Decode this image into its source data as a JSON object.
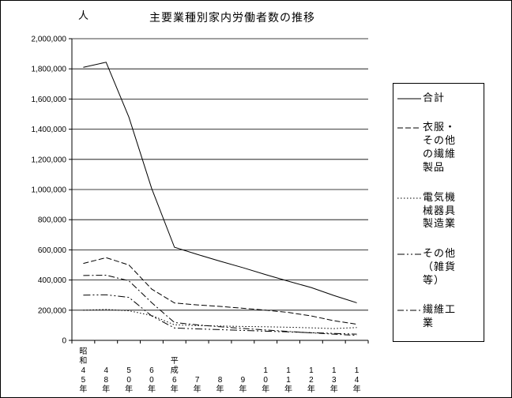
{
  "chart_data": {
    "type": "line",
    "title": "主要業種別家内労働者数の推移",
    "unit_label": "人",
    "grid": "horizontal",
    "legend_position": "right",
    "line_color": "#000000",
    "ylim": [
      0,
      2000000
    ],
    "y_ticks": [
      {
        "value": 0,
        "label": "0"
      },
      {
        "value": 200000,
        "label": "200,000"
      },
      {
        "value": 400000,
        "label": "400,000"
      },
      {
        "value": 600000,
        "label": "600,000"
      },
      {
        "value": 800000,
        "label": "800,000"
      },
      {
        "value": 1000000,
        "label": "1,000,000"
      },
      {
        "value": 1200000,
        "label": "1,200,000"
      },
      {
        "value": 1400000,
        "label": "1,400,000"
      },
      {
        "value": 1600000,
        "label": "1,600,000"
      },
      {
        "value": 1800000,
        "label": "1,800,000"
      },
      {
        "value": 2000000,
        "label": "2,000,000"
      }
    ],
    "categories": [
      "昭和45年",
      "48年",
      "50年",
      "60年",
      "平成6年",
      "7年",
      "8年",
      "9年",
      "10年",
      "11年",
      "12年",
      "13年",
      "14年"
    ],
    "series": [
      {
        "name": "合計",
        "legend_label": "合計",
        "dash": "solid",
        "values": [
          1810000,
          1844000,
          1480000,
          1007000,
          617000,
          570000,
          525000,
          482000,
          436000,
          392000,
          350000,
          297000,
          249000
        ]
      },
      {
        "name": "衣服・その他の繊維製品",
        "legend_label": "衣服・\nその他\nの繊維\n製品",
        "dash": "dashed",
        "values": [
          510000,
          548000,
          500000,
          340000,
          248000,
          235000,
          225000,
          213000,
          200000,
          185000,
          162000,
          130000,
          107000
        ]
      },
      {
        "name": "電気機械器具製造業",
        "legend_label": "電気機\n械器具\n製造業",
        "dash": "dotted",
        "values": [
          200000,
          205000,
          196000,
          165000,
          103000,
          98000,
          95000,
          92000,
          90000,
          87000,
          83000,
          78000,
          85000
        ]
      },
      {
        "name": "その他（雑貨等）",
        "legend_label": "その他\n（雑貨\n等）",
        "dash": "dashdotdot",
        "values": [
          300000,
          302000,
          285000,
          162000,
          82000,
          76000,
          71000,
          66000,
          61000,
          56000,
          51000,
          46000,
          41000
        ]
      },
      {
        "name": "繊維工業",
        "legend_label": "繊維工\n業",
        "dash": "dashdot",
        "values": [
          430000,
          432000,
          395000,
          250000,
          118000,
          103000,
          90000,
          79000,
          69000,
          59000,
          50000,
          41000,
          33000
        ]
      }
    ]
  }
}
